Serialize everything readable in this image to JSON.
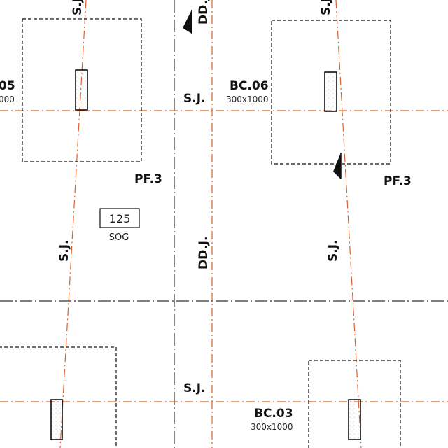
{
  "drawing": {
    "joint_labels": {
      "sj": "S.J.",
      "ddj": "DD.J."
    },
    "columns": {
      "bc05_partial": {
        "name": "05",
        "size": "000"
      },
      "bc06": {
        "name": "BC.06",
        "size": "300x1000"
      },
      "bc03": {
        "name": "BC.03",
        "size": "300x1000"
      }
    },
    "footings": {
      "pf3_left": "PF.3",
      "pf3_right": "PF.3"
    },
    "slab": {
      "thickness": "125",
      "type": "SOG"
    },
    "colors": {
      "joint_line": "#e0602a",
      "linework": "#111111",
      "gridline": "#333333"
    }
  }
}
